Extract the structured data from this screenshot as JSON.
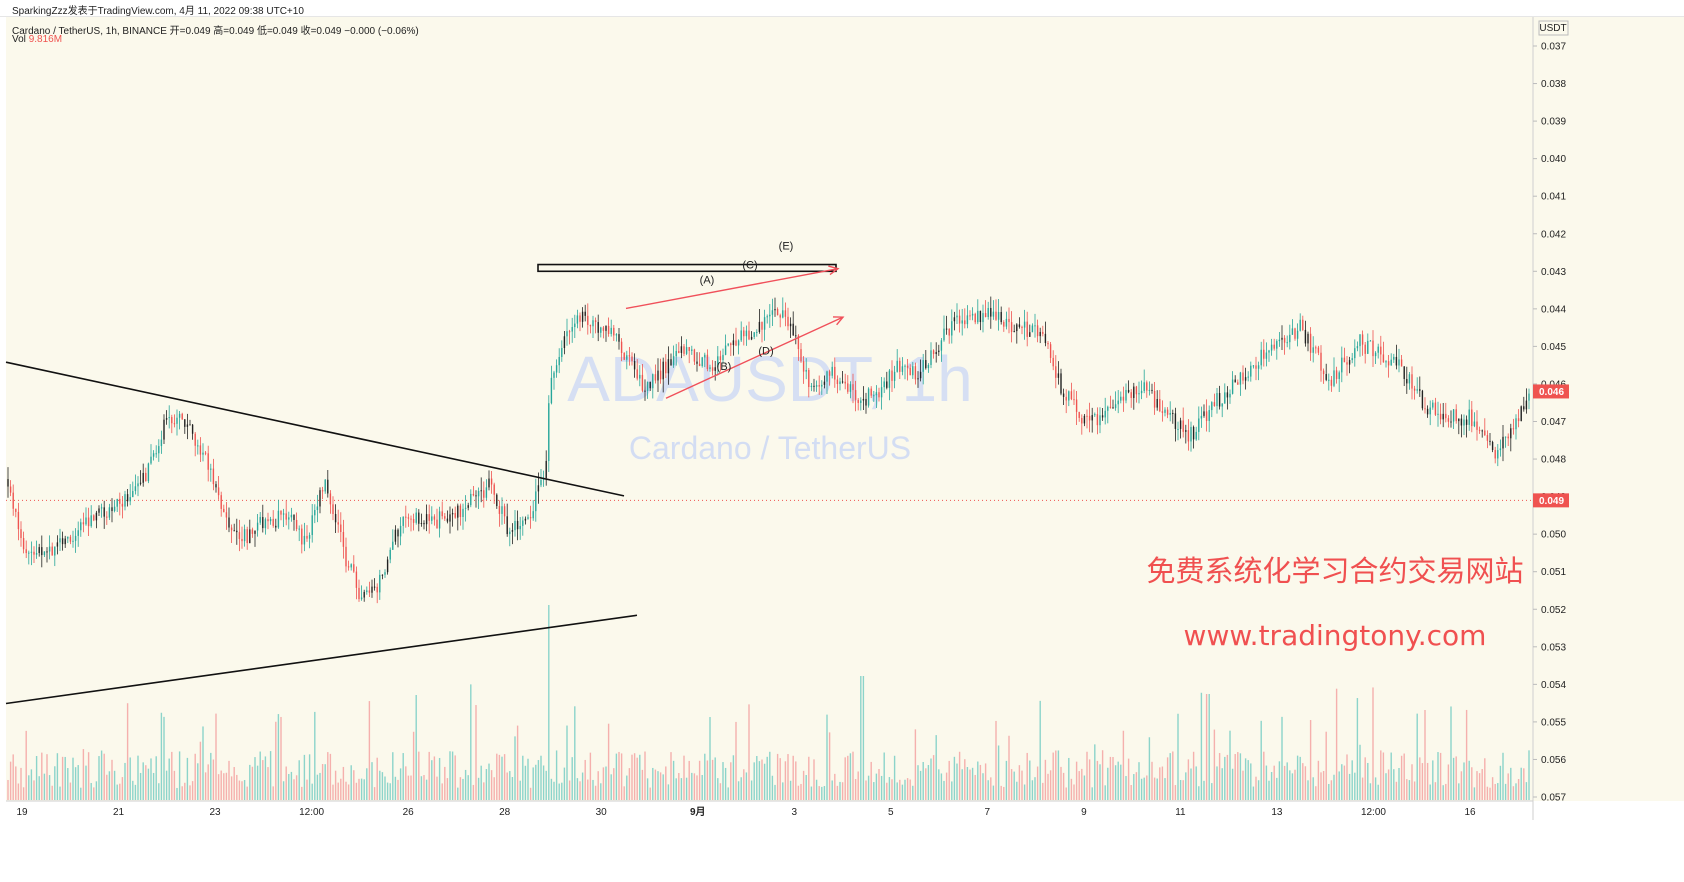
{
  "header": {
    "publish_line": "SparkingZzz发表于TradingView.com,  4月 11, 2022 09:38 UTC+10",
    "symbol_line": "Cardano / TetherUS, 1h, BINANCE  开=0.049  高=0.049  低=0.049  收=0.049  −0.000 (−0.06%)",
    "vol_label": "Vol",
    "vol_value": "9.816M"
  },
  "watermark": {
    "ticker": "ADAUSDT, 1h",
    "name": "Cardano / TetherUS"
  },
  "promo": {
    "line1": "免费系统化学习合约交易网站",
    "line2": "www.tradingtony.com"
  },
  "colors": {
    "up": "#26a69a",
    "down": "#ef5350",
    "bar_dark": "#222222",
    "annotation": "#f0505a",
    "promo": "#f05050",
    "background": "#fbf9ec"
  },
  "chart_data": {
    "type": "candlestick",
    "axis_currency": "USDT",
    "y_axis": {
      "position": "right",
      "inverted": true,
      "ticks": [
        "0.037",
        "0.038",
        "0.039",
        "0.040",
        "0.041",
        "0.042",
        "0.043",
        "0.044",
        "0.045",
        "0.046",
        "0.047",
        "0.048",
        "0.049",
        "0.050",
        "0.051",
        "0.052",
        "0.053",
        "0.054",
        "0.055",
        "0.056",
        "0.057"
      ],
      "ylim": [
        0.0367,
        0.0574
      ]
    },
    "x_axis": {
      "ticks": [
        "19",
        "21",
        "23",
        "12:00",
        "26",
        "28",
        "30",
        "9月",
        "3",
        "5",
        "7",
        "9",
        "11",
        "13",
        "12:00",
        "16"
      ],
      "bold_tick": "9月"
    },
    "price_labels": [
      {
        "text": "0.046",
        "value": 0.0462
      },
      {
        "text": "0.049",
        "value": 0.0491
      }
    ],
    "reference_line": 0.0491,
    "price_anchors": [
      [
        0,
        0.047
      ],
      [
        12,
        0.0493
      ],
      [
        30,
        0.0507
      ],
      [
        55,
        0.0503
      ],
      [
        95,
        0.0496
      ],
      [
        140,
        0.0488
      ],
      [
        165,
        0.047
      ],
      [
        185,
        0.047
      ],
      [
        205,
        0.0479
      ],
      [
        225,
        0.0494
      ],
      [
        240,
        0.0502
      ],
      [
        265,
        0.0496
      ],
      [
        290,
        0.0496
      ],
      [
        305,
        0.0502
      ],
      [
        325,
        0.0485
      ],
      [
        345,
        0.0506
      ],
      [
        360,
        0.0516
      ],
      [
        375,
        0.0516
      ],
      [
        390,
        0.0505
      ],
      [
        405,
        0.0494
      ],
      [
        430,
        0.0497
      ],
      [
        460,
        0.0494
      ],
      [
        490,
        0.0487
      ],
      [
        510,
        0.05
      ],
      [
        530,
        0.0494
      ],
      [
        545,
        0.0485
      ],
      [
        550,
        0.0461
      ],
      [
        565,
        0.0448
      ],
      [
        580,
        0.0442
      ],
      [
        610,
        0.0446
      ],
      [
        645,
        0.0462
      ],
      [
        680,
        0.0451
      ],
      [
        712,
        0.0455
      ],
      [
        735,
        0.0448
      ],
      [
        760,
        0.0445
      ],
      [
        785,
        0.044
      ],
      [
        800,
        0.0452
      ],
      [
        812,
        0.0463
      ],
      [
        830,
        0.0456
      ],
      [
        860,
        0.0464
      ],
      [
        875,
        0.0463
      ],
      [
        900,
        0.0455
      ],
      [
        920,
        0.0457
      ],
      [
        955,
        0.0443
      ],
      [
        985,
        0.0441
      ],
      [
        1005,
        0.0444
      ],
      [
        1040,
        0.0446
      ],
      [
        1060,
        0.046
      ],
      [
        1085,
        0.0471
      ],
      [
        1115,
        0.0466
      ],
      [
        1140,
        0.046
      ],
      [
        1165,
        0.0467
      ],
      [
        1190,
        0.0474
      ],
      [
        1215,
        0.0465
      ],
      [
        1245,
        0.0458
      ],
      [
        1270,
        0.045
      ],
      [
        1300,
        0.0445
      ],
      [
        1330,
        0.0459
      ],
      [
        1360,
        0.0449
      ],
      [
        1400,
        0.0455
      ],
      [
        1420,
        0.0464
      ],
      [
        1440,
        0.0469
      ],
      [
        1470,
        0.0469
      ],
      [
        1495,
        0.0478
      ],
      [
        1515,
        0.047
      ],
      [
        1528,
        0.0462
      ]
    ],
    "trendlines": [
      {
        "name": "upper-descending",
        "points": [
          [
            6,
            0.04542
          ],
          [
            624,
            0.04898
          ]
        ]
      },
      {
        "name": "lower-ascending",
        "points": [
          [
            6,
            0.05451
          ],
          [
            637,
            0.05216
          ]
        ]
      }
    ],
    "resistance_box": {
      "x": [
        538,
        836
      ],
      "y": [
        0.04282,
        0.043
      ]
    },
    "arrows": [
      {
        "from": [
          626,
          0.04399
        ],
        "to": [
          838,
          0.04293
        ]
      },
      {
        "from": [
          666,
          0.04638
        ],
        "to": [
          843,
          0.04422
        ]
      }
    ],
    "wave_labels": [
      {
        "text": "(A)",
        "at": [
          707,
          0.04333
        ]
      },
      {
        "text": "(B)",
        "at": [
          724,
          0.04563
        ]
      },
      {
        "text": "(C)",
        "at": [
          750,
          0.04292
        ]
      },
      {
        "text": "(D)",
        "at": [
          766,
          0.04521
        ]
      },
      {
        "text": "(E)",
        "at": [
          786,
          0.04242
        ]
      }
    ]
  }
}
